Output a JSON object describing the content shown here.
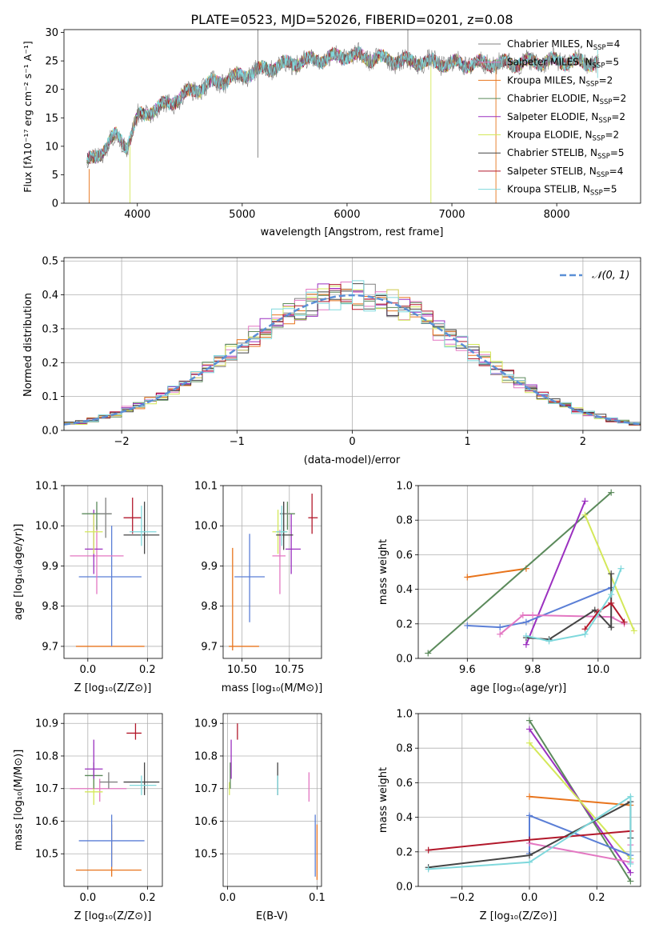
{
  "figure_title": "PLATE=0523, MJD=52026, FIBERID=0201, z=0.08",
  "model_colors": {
    "Chabrier MILES": "#808080",
    "Salpeter MILES": "#e377c2",
    "Kroupa MILES": "#e8741c",
    "Chabrier ELODIE": "#5b8a5b",
    "Salpeter ELODIE": "#9b30c0",
    "Kroupa ELODIE": "#d4e85a",
    "Chabrier STELIB": "#454545",
    "Salpeter STELIB": "#b2182b",
    "Kroupa STELIB": "#7fd8dc",
    "Blue": "#5b7fd6"
  },
  "chart_data": [
    {
      "id": "spectrum",
      "type": "line",
      "xlabel": "wavelength [Angstrom, rest frame]",
      "ylabel": "Flux [fλ10⁻¹⁷ erg cm⁻² s⁻¹ A⁻¹]",
      "xlim": [
        3300,
        8800
      ],
      "ylim": [
        0,
        30.5
      ],
      "xticks": [
        4000,
        5000,
        6000,
        7000,
        8000
      ],
      "yticks": [
        0,
        5,
        10,
        15,
        20,
        25,
        30
      ],
      "legend": "right",
      "series": [
        {
          "name": "Chabrier MILES, N",
          "sub": "SSP",
          "suffix": "=4",
          "color_key": "Chabrier MILES"
        },
        {
          "name": "Salpeter MILES, N",
          "sub": "SSP",
          "suffix": "=5",
          "color_key": "Salpeter MILES"
        },
        {
          "name": "Kroupa MILES, N",
          "sub": "SSP",
          "suffix": "=2",
          "color_key": "Kroupa MILES"
        },
        {
          "name": "Chabrier ELODIE, N",
          "sub": "SSP",
          "suffix": "=2",
          "color_key": "Chabrier ELODIE"
        },
        {
          "name": "Salpeter ELODIE, N",
          "sub": "SSP",
          "suffix": "=2",
          "color_key": "Salpeter ELODIE"
        },
        {
          "name": "Kroupa ELODIE, N",
          "sub": "SSP",
          "suffix": "=2",
          "color_key": "Kroupa ELODIE"
        },
        {
          "name": "Chabrier STELIB, N",
          "sub": "SSP",
          "suffix": "=5",
          "color_key": "Chabrier STELIB"
        },
        {
          "name": "Salpeter STELIB, N",
          "sub": "SSP",
          "suffix": "=4",
          "color_key": "Salpeter STELIB"
        },
        {
          "name": "Kroupa STELIB, N",
          "sub": "SSP",
          "suffix": "=5",
          "color_key": "Kroupa STELIB"
        }
      ],
      "continuum": {
        "x": [
          3500,
          3600,
          3700,
          3800,
          3900,
          4000,
          4100,
          4300,
          4500,
          4700,
          5000,
          5300,
          5600,
          6000,
          6500,
          7000,
          7500,
          8000,
          8500
        ],
        "y": [
          7,
          8,
          10,
          12,
          10,
          15,
          16,
          17.5,
          19.5,
          21,
          22.5,
          24,
          25,
          26,
          25,
          24.5,
          24.5,
          25,
          24.5
        ]
      },
      "spikes": [
        {
          "x": 5150,
          "y0": 8,
          "y1": 30.5,
          "color_key": "Chabrier MILES"
        },
        {
          "x": 6580,
          "y0": 24,
          "y1": 30.5,
          "color_key": "Chabrier MILES"
        },
        {
          "x": 6800,
          "y0": 0,
          "y1": 24,
          "color_key": "Kroupa ELODIE"
        },
        {
          "x": 7420,
          "y0": 0,
          "y1": 24,
          "color_key": "Kroupa MILES"
        },
        {
          "x": 3540,
          "y0": 0,
          "y1": 6,
          "color_key": "Kroupa MILES"
        },
        {
          "x": 3930,
          "y0": 0,
          "y1": 10,
          "color_key": "Kroupa ELODIE"
        },
        {
          "x": 8390,
          "y0": 22,
          "y1": 27,
          "color_key": "Kroupa STELIB"
        }
      ]
    },
    {
      "id": "residuals",
      "type": "histogram",
      "xlabel": "(data-model)/error",
      "ylabel": "Normed distribution",
      "xlim": [
        -2.5,
        2.5
      ],
      "ylim": [
        0,
        0.51
      ],
      "xticks": [
        -2,
        -1,
        0,
        1,
        2
      ],
      "xtick_labels": [
        "−2",
        "−1",
        "0",
        "1",
        "2"
      ],
      "yticks": [
        0.0,
        0.1,
        0.2,
        0.3,
        0.4,
        0.5
      ],
      "ytick_labels": [
        "0.0",
        "0.1",
        "0.2",
        "0.3",
        "0.4",
        "0.5"
      ],
      "bin_width": 0.1,
      "legend_label": "𝒩(0, 1)",
      "legend_color": "#5b8fd6",
      "legend": "top-right",
      "series_color_keys": [
        "Chabrier MILES",
        "Salpeter MILES",
        "Kroupa MILES",
        "Chabrier ELODIE",
        "Salpeter ELODIE",
        "Kroupa ELODIE",
        "Chabrier STELIB",
        "Salpeter STELIB",
        "Kroupa STELIB"
      ]
    },
    {
      "id": "age_vs_Z",
      "type": "errorbar",
      "xlabel": "Z [log₁₀(Z/Z⊙)]",
      "ylabel": "age  [log₁₀(age/yr)]",
      "xlim": [
        -0.08,
        0.25
      ],
      "ylim": [
        9.67,
        10.1
      ],
      "xticks": [
        0.0,
        0.2
      ],
      "xtick_labels": [
        "0.0",
        "0.2"
      ],
      "yticks": [
        9.7,
        9.8,
        9.9,
        10.0,
        10.1
      ],
      "ytick_labels": [
        "9.7",
        "9.8",
        "9.9",
        "10.0",
        "10.1"
      ],
      "points": [
        {
          "c": "Kroupa MILES",
          "x": 0.08,
          "y": 9.7,
          "xl": -0.04,
          "xh": 0.19,
          "yl": 9.7,
          "yh": 9.7
        },
        {
          "c": "Blue",
          "x": 0.08,
          "y": 9.873,
          "xl": -0.03,
          "xh": 0.18,
          "yl": 9.7,
          "yh": 10.0
        },
        {
          "c": "Salpeter MILES",
          "x": 0.03,
          "y": 9.925,
          "xl": -0.06,
          "xh": 0.12,
          "yl": 9.83,
          "yh": 10.0
        },
        {
          "c": "Salpeter ELODIE",
          "x": 0.02,
          "y": 9.942,
          "xl": -0.01,
          "xh": 0.05,
          "yl": 9.88,
          "yh": 10.04
        },
        {
          "c": "Kroupa ELODIE",
          "x": 0.02,
          "y": 9.985,
          "xl": -0.01,
          "xh": 0.05,
          "yl": 9.93,
          "yh": 10.03
        },
        {
          "c": "Chabrier ELODIE",
          "x": 0.03,
          "y": 10.03,
          "xl": -0.02,
          "xh": 0.08,
          "yl": 9.99,
          "yh": 10.06
        },
        {
          "c": "Chabrier MILES",
          "x": 0.06,
          "y": 10.03,
          "xl": 0.04,
          "xh": 0.08,
          "yl": 9.97,
          "yh": 10.07
        },
        {
          "c": "Salpeter STELIB",
          "x": 0.15,
          "y": 10.02,
          "xl": 0.12,
          "xh": 0.18,
          "yl": 9.98,
          "yh": 10.07
        },
        {
          "c": "Chabrier STELIB",
          "x": 0.19,
          "y": 9.977,
          "xl": 0.12,
          "xh": 0.24,
          "yl": 9.93,
          "yh": 10.06
        },
        {
          "c": "Kroupa STELIB",
          "x": 0.18,
          "y": 9.985,
          "xl": 0.14,
          "xh": 0.23,
          "yl": 9.95,
          "yh": 10.05
        }
      ]
    },
    {
      "id": "age_vs_mass",
      "type": "errorbar",
      "xlabel": "mass [log₁₀(M/M⊙)]",
      "xlim": [
        10.4,
        10.92
      ],
      "ylim": [
        9.67,
        10.1
      ],
      "xticks": [
        10.5,
        10.75
      ],
      "xtick_labels": [
        "10.50",
        "10.75"
      ],
      "yticks": [
        9.7,
        9.8,
        9.9,
        10.0,
        10.1
      ],
      "ytick_labels": [
        "9.7",
        "9.8",
        "9.9",
        "10.0",
        "10.1"
      ],
      "points": [
        {
          "c": "Kroupa MILES",
          "x": 10.45,
          "y": 9.7,
          "xl": 10.43,
          "xh": 10.59,
          "yl": 9.69,
          "yh": 9.945
        },
        {
          "c": "Blue",
          "x": 10.54,
          "y": 9.873,
          "xl": 10.46,
          "xh": 10.62,
          "yl": 9.76,
          "yh": 9.98
        },
        {
          "c": "Salpeter MILES",
          "x": 10.7,
          "y": 9.925,
          "xl": 10.66,
          "xh": 10.73,
          "yl": 9.83,
          "yh": 9.99
        },
        {
          "c": "Salpeter ELODIE",
          "x": 10.76,
          "y": 9.942,
          "xl": 10.73,
          "xh": 10.81,
          "yl": 9.88,
          "yh": 10.03
        },
        {
          "c": "Kroupa ELODIE",
          "x": 10.69,
          "y": 9.985,
          "xl": 10.66,
          "xh": 10.74,
          "yl": 9.93,
          "yh": 10.04
        },
        {
          "c": "Chabrier ELODIE",
          "x": 10.74,
          "y": 10.03,
          "xl": 10.7,
          "xh": 10.78,
          "yl": 9.99,
          "yh": 10.06
        },
        {
          "c": "Chabrier MILES",
          "x": 10.72,
          "y": 10.03,
          "xl": 10.7,
          "xh": 10.75,
          "yl": 9.97,
          "yh": 10.06
        },
        {
          "c": "Salpeter STELIB",
          "x": 10.87,
          "y": 10.02,
          "xl": 10.85,
          "xh": 10.9,
          "yl": 9.98,
          "yh": 10.08
        },
        {
          "c": "Chabrier STELIB",
          "x": 10.72,
          "y": 9.977,
          "xl": 10.68,
          "xh": 10.77,
          "yl": 9.94,
          "yh": 10.06
        },
        {
          "c": "Kroupa STELIB",
          "x": 10.71,
          "y": 9.985,
          "xl": 10.68,
          "xh": 10.74,
          "yl": 9.95,
          "yh": 10.05
        }
      ]
    },
    {
      "id": "weight_vs_age",
      "type": "line",
      "xlabel": "age  [log₁₀(age/yr)]",
      "ylabel": "mass weight",
      "xlim": [
        9.45,
        10.13
      ],
      "ylim": [
        0.0,
        1.0
      ],
      "xticks": [
        9.6,
        9.8,
        10.0
      ],
      "xtick_labels": [
        "9.6",
        "9.8",
        "10.0"
      ],
      "yticks": [
        0.0,
        0.2,
        0.4,
        0.6,
        0.8,
        1.0
      ],
      "ytick_labels": [
        "0.0",
        "0.2",
        "0.4",
        "0.6",
        "0.8",
        "1.0"
      ],
      "series": [
        {
          "c": "Kroupa MILES",
          "x": [
            9.6,
            9.78
          ],
          "y": [
            0.47,
            0.52
          ]
        },
        {
          "c": "Chabrier ELODIE",
          "x": [
            9.48,
            10.04
          ],
          "y": [
            0.03,
            0.96
          ]
        },
        {
          "c": "Salpeter ELODIE",
          "x": [
            9.78,
            9.96
          ],
          "y": [
            0.08,
            0.91
          ]
        },
        {
          "c": "Kroupa ELODIE",
          "x": [
            9.96,
            10.11
          ],
          "y": [
            0.83,
            0.16
          ]
        },
        {
          "c": "Blue",
          "x": [
            9.6,
            9.7,
            9.78,
            10.04
          ],
          "y": [
            0.19,
            0.18,
            0.21,
            0.41
          ]
        },
        {
          "c": "Salpeter MILES",
          "x": [
            9.7,
            9.77,
            9.8,
            10.04,
            10.08
          ],
          "y": [
            0.14,
            0.25,
            0.25,
            0.24,
            0.2
          ]
        },
        {
          "c": "Chabrier STELIB",
          "x": [
            9.78,
            9.85,
            9.99,
            10.04,
            10.04
          ],
          "y": [
            0.12,
            0.11,
            0.28,
            0.18,
            0.49
          ]
        },
        {
          "c": "Salpeter STELIB",
          "x": [
            9.96,
            10.0,
            10.04,
            10.08
          ],
          "y": [
            0.17,
            0.27,
            0.32,
            0.21
          ]
        },
        {
          "c": "Kroupa STELIB",
          "x": [
            9.78,
            9.85,
            9.96,
            10.04,
            10.07
          ],
          "y": [
            0.13,
            0.1,
            0.14,
            0.37,
            0.52
          ]
        }
      ]
    },
    {
      "id": "mass_vs_Z",
      "type": "errorbar",
      "xlabel": "Z [log₁₀(Z/Z⊙)]",
      "ylabel": "mass [log₁₀(M/M⊙)]",
      "xlim": [
        -0.08,
        0.25
      ],
      "ylim": [
        10.4,
        10.93
      ],
      "xticks": [
        0.0,
        0.2
      ],
      "xtick_labels": [
        "0.0",
        "0.2"
      ],
      "yticks": [
        10.5,
        10.6,
        10.7,
        10.8,
        10.9
      ],
      "ytick_labels": [
        "10.5",
        "10.6",
        "10.7",
        "10.8",
        "10.9"
      ],
      "points": [
        {
          "c": "Kroupa MILES",
          "x": 0.08,
          "y": 10.45,
          "xl": -0.04,
          "xh": 0.18,
          "yl": 10.43,
          "yh": 10.59
        },
        {
          "c": "Blue",
          "x": 0.08,
          "y": 10.54,
          "xl": -0.03,
          "xh": 0.19,
          "yl": 10.46,
          "yh": 10.62
        },
        {
          "c": "Salpeter MILES",
          "x": 0.04,
          "y": 10.7,
          "xl": -0.06,
          "xh": 0.13,
          "yl": 10.66,
          "yh": 10.73
        },
        {
          "c": "Kroupa ELODIE",
          "x": 0.02,
          "y": 10.69,
          "xl": -0.01,
          "xh": 0.05,
          "yl": 10.65,
          "yh": 10.73
        },
        {
          "c": "Chabrier ELODIE",
          "x": 0.02,
          "y": 10.74,
          "xl": -0.01,
          "xh": 0.05,
          "yl": 10.7,
          "yh": 10.78
        },
        {
          "c": "Salpeter ELODIE",
          "x": 0.02,
          "y": 10.76,
          "xl": -0.01,
          "xh": 0.05,
          "yl": 10.73,
          "yh": 10.85
        },
        {
          "c": "Chabrier MILES",
          "x": 0.07,
          "y": 10.72,
          "xl": 0.04,
          "xh": 0.1,
          "yl": 10.7,
          "yh": 10.75
        },
        {
          "c": "Salpeter STELIB",
          "x": 0.16,
          "y": 10.87,
          "xl": 0.13,
          "xh": 0.18,
          "yl": 10.85,
          "yh": 10.9
        },
        {
          "c": "Chabrier STELIB",
          "x": 0.19,
          "y": 10.72,
          "xl": 0.12,
          "xh": 0.24,
          "yl": 10.68,
          "yh": 10.78
        },
        {
          "c": "Kroupa STELIB",
          "x": 0.18,
          "y": 10.71,
          "xl": 0.14,
          "xh": 0.23,
          "yl": 10.68,
          "yh": 10.74
        }
      ]
    },
    {
      "id": "mass_vs_EBV",
      "type": "errorbar",
      "xlabel": "E(B-V)",
      "xlim": [
        -0.005,
        0.105
      ],
      "ylim": [
        10.4,
        10.93
      ],
      "xticks": [
        0.0,
        0.1
      ],
      "xtick_labels": [
        "0.0",
        "0.1"
      ],
      "yticks": [
        10.5,
        10.6,
        10.7,
        10.8,
        10.9
      ],
      "ytick_labels": [
        "10.5",
        "10.6",
        "10.7",
        "10.8",
        "10.9"
      ],
      "points": [
        {
          "c": "Kroupa MILES",
          "x": 0.1,
          "y": 10.45,
          "xl": 0.1,
          "xh": 0.1,
          "yl": 10.42,
          "yh": 10.59
        },
        {
          "c": "Blue",
          "x": 0.098,
          "y": 10.54,
          "xl": 0.098,
          "xh": 0.098,
          "yl": 10.43,
          "yh": 10.62
        },
        {
          "c": "Salpeter MILES",
          "x": 0.091,
          "y": 10.7,
          "xl": 0.091,
          "xh": 0.091,
          "yl": 10.66,
          "yh": 10.75
        },
        {
          "c": "Kroupa ELODIE",
          "x": 0.002,
          "y": 10.69,
          "xl": 0.002,
          "xh": 0.002,
          "yl": 10.68,
          "yh": 10.72
        },
        {
          "c": "Chabrier ELODIE",
          "x": 0.003,
          "y": 10.74,
          "xl": 0.003,
          "xh": 0.003,
          "yl": 10.7,
          "yh": 10.78
        },
        {
          "c": "Salpeter ELODIE",
          "x": 0.004,
          "y": 10.76,
          "xl": 0.004,
          "xh": 0.004,
          "yl": 10.73,
          "yh": 10.85
        },
        {
          "c": "Salpeter STELIB",
          "x": 0.011,
          "y": 10.87,
          "xl": 0.011,
          "xh": 0.011,
          "yl": 10.85,
          "yh": 10.9
        },
        {
          "c": "Chabrier STELIB",
          "x": 0.056,
          "y": 10.72,
          "xl": 0.056,
          "xh": 0.056,
          "yl": 10.68,
          "yh": 10.78
        },
        {
          "c": "Kroupa STELIB",
          "x": 0.056,
          "y": 10.71,
          "xl": 0.056,
          "xh": 0.056,
          "yl": 10.68,
          "yh": 10.74
        }
      ]
    },
    {
      "id": "weight_vs_Z",
      "type": "line",
      "xlabel": "Z [log₁₀(Z/Z⊙)]",
      "ylabel": "mass weight",
      "xlim": [
        -0.33,
        0.33
      ],
      "ylim": [
        0.0,
        1.0
      ],
      "xticks": [
        -0.2,
        0.0,
        0.2
      ],
      "xtick_labels": [
        "−0.2",
        "0.0",
        "0.2"
      ],
      "yticks": [
        0.0,
        0.2,
        0.4,
        0.6,
        0.8,
        1.0
      ],
      "ytick_labels": [
        "0.0",
        "0.2",
        "0.4",
        "0.6",
        "0.8",
        "1.0"
      ],
      "series": [
        {
          "c": "Kroupa MILES",
          "x": [
            0.0,
            0.3
          ],
          "y": [
            0.52,
            0.47
          ]
        },
        {
          "c": "Chabrier ELODIE",
          "x": [
            0.0,
            0.3
          ],
          "y": [
            0.96,
            0.03
          ]
        },
        {
          "c": "Salpeter ELODIE",
          "x": [
            0.0,
            0.3
          ],
          "y": [
            0.91,
            0.08
          ]
        },
        {
          "c": "Kroupa ELODIE",
          "x": [
            0.0,
            0.3
          ],
          "y": [
            0.83,
            0.16
          ]
        },
        {
          "c": "Blue",
          "x": [
            0.0,
            0.0,
            0.3
          ],
          "y": [
            0.19,
            0.41,
            0.18
          ]
        },
        {
          "c": "Salpeter MILES",
          "x": [
            0.0,
            0.3,
            0.3
          ],
          "y": [
            0.25,
            0.14,
            0.24
          ]
        },
        {
          "c": "Chabrier STELIB",
          "x": [
            -0.3,
            0.0,
            0.3,
            0.3
          ],
          "y": [
            0.11,
            0.18,
            0.49,
            0.28
          ]
        },
        {
          "c": "Salpeter STELIB",
          "x": [
            -0.3,
            0.0,
            0.3
          ],
          "y": [
            0.21,
            0.27,
            0.32
          ]
        },
        {
          "c": "Kroupa STELIB",
          "x": [
            -0.3,
            0.0,
            0.3,
            0.3
          ],
          "y": [
            0.1,
            0.14,
            0.52,
            0.13
          ]
        }
      ]
    }
  ]
}
